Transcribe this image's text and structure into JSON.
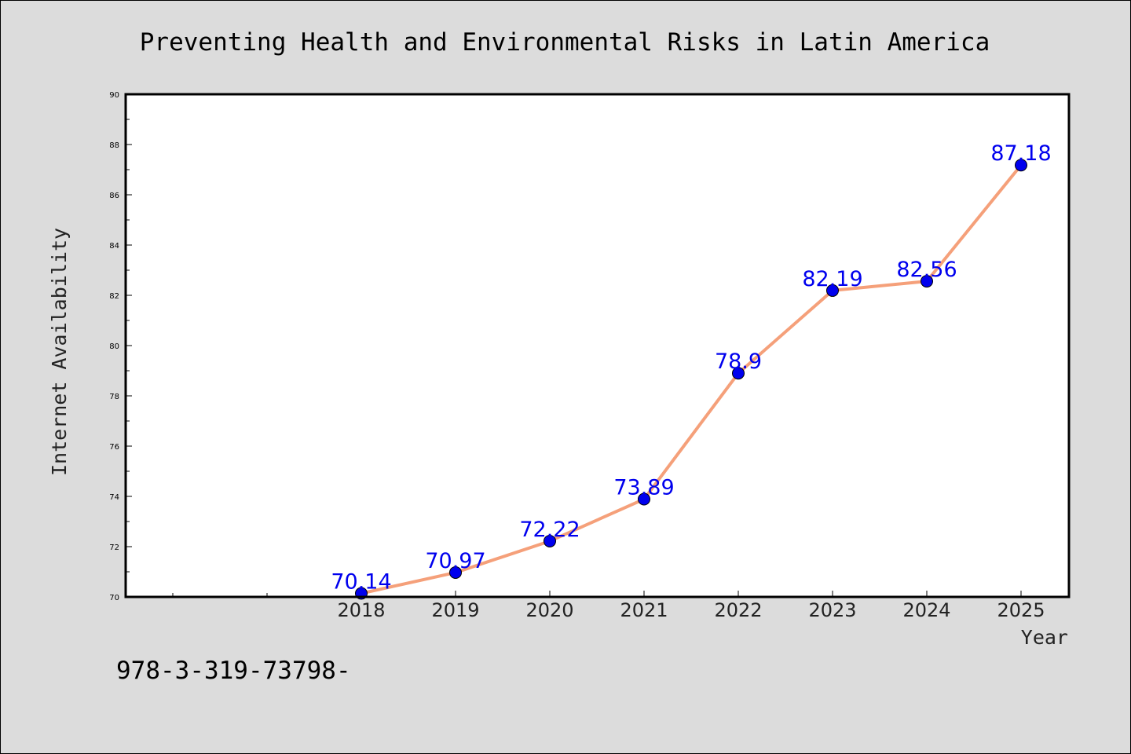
{
  "chart_data": {
    "type": "line",
    "title": "Preventing Health and Environmental Risks in Latin America",
    "xlabel": "Year",
    "ylabel": "Internet Availability",
    "x": [
      "2018",
      "2019",
      "2020",
      "2021",
      "2022",
      "2023",
      "2024",
      "2025"
    ],
    "series": [
      {
        "values": [
          70.14,
          70.97,
          72.22,
          73.89,
          78.9,
          82.19,
          82.56,
          87.18
        ],
        "labels": [
          "70.14",
          "70.97",
          "72.22",
          "73.89",
          "78.9",
          "82.19",
          "82.56",
          "87.18"
        ],
        "line_color": "#f5a07a",
        "marker_color": "#0000ee"
      }
    ],
    "ylim": [
      70,
      90
    ],
    "yticks": [
      "70",
      "72",
      "74",
      "76",
      "78",
      "80",
      "82",
      "84",
      "86",
      "88",
      "90"
    ],
    "label_color": "#0000ee",
    "grid": false,
    "legend": "none"
  },
  "footer_note": "978-3-319-73798-"
}
